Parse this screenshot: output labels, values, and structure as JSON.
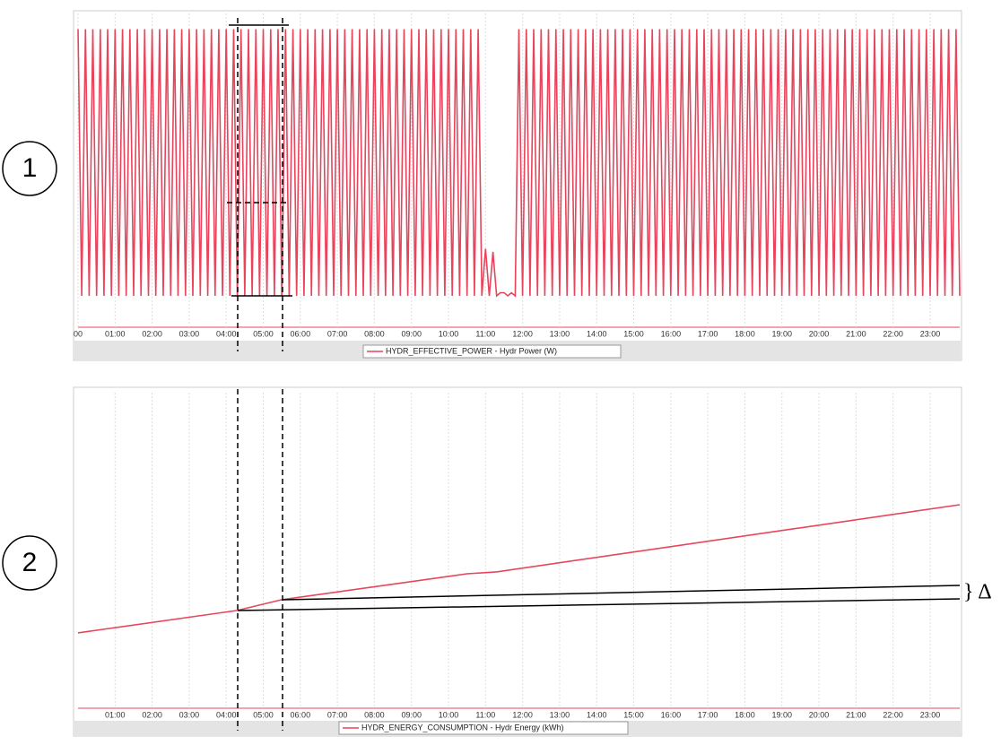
{
  "chart_data": [
    {
      "type": "line",
      "annotations": [
        "1"
      ],
      "xlim": [
        0,
        23.8
      ],
      "ylim": [
        0,
        100
      ],
      "grid": true,
      "xticks": [
        {
          "value": 0,
          "label": "00"
        },
        {
          "value": 1,
          "label": "01:00"
        },
        {
          "value": 2,
          "label": "02:00"
        },
        {
          "value": 3,
          "label": "03:00"
        },
        {
          "value": 4,
          "label": "04:00"
        },
        {
          "value": 5,
          "label": "05:00"
        },
        {
          "value": 6,
          "label": "06:00"
        },
        {
          "value": 7,
          "label": "07:00"
        },
        {
          "value": 8,
          "label": "08:00"
        },
        {
          "value": 9,
          "label": "09:00"
        },
        {
          "value": 10,
          "label": "10:00"
        },
        {
          "value": 11,
          "label": "11:00"
        },
        {
          "value": 12,
          "label": "12:00"
        },
        {
          "value": 13,
          "label": "13:00"
        },
        {
          "value": 14,
          "label": "14:00"
        },
        {
          "value": 15,
          "label": "15:00"
        },
        {
          "value": 16,
          "label": "16:00"
        },
        {
          "value": 17,
          "label": "17:00"
        },
        {
          "value": 18,
          "label": "18:00"
        },
        {
          "value": 19,
          "label": "19:00"
        },
        {
          "value": 20,
          "label": "20:00"
        },
        {
          "value": 21,
          "label": "21:00"
        },
        {
          "value": 22,
          "label": "22:00"
        },
        {
          "value": 23,
          "label": "23:00"
        }
      ],
      "x": [
        0,
        0.1,
        0.2,
        0.3,
        0.4,
        0.5,
        0.6,
        0.7,
        0.8,
        0.9,
        1,
        1.1,
        1.2,
        1.3,
        1.4,
        1.5,
        1.6,
        1.7,
        1.8,
        1.9,
        2,
        2.1,
        2.2,
        2.3,
        2.4,
        2.5,
        2.6,
        2.7,
        2.8,
        2.9,
        3,
        3.1,
        3.2,
        3.3,
        3.4,
        3.5,
        3.6,
        3.7,
        3.8,
        3.9,
        4,
        4.1,
        4.2,
        4.3,
        4.4,
        4.5,
        4.6,
        4.7,
        4.8,
        4.9,
        5,
        5.1,
        5.2,
        5.3,
        5.4,
        5.5,
        5.6,
        5.7,
        5.8,
        5.9,
        6,
        6.1,
        6.2,
        6.3,
        6.4,
        6.5,
        6.6,
        6.7,
        6.8,
        6.9,
        7,
        7.1,
        7.2,
        7.3,
        7.4,
        7.5,
        7.6,
        7.7,
        7.8,
        7.9,
        8,
        8.1,
        8.2,
        8.3,
        8.4,
        8.5,
        8.6,
        8.7,
        8.8,
        8.9,
        9,
        9.1,
        9.2,
        9.3,
        9.4,
        9.5,
        9.6,
        9.7,
        9.8,
        9.9,
        10,
        10.1,
        10.2,
        10.3,
        10.4,
        10.5,
        10.6,
        10.7,
        10.8,
        10.9,
        11,
        11.1,
        11.2,
        11.3,
        11.4,
        11.5,
        11.6,
        11.7,
        11.8,
        11.9,
        12,
        12.1,
        12.2,
        12.3,
        12.4,
        12.5,
        12.6,
        12.7,
        12.8,
        12.9,
        13,
        13.1,
        13.2,
        13.3,
        13.4,
        13.5,
        13.6,
        13.7,
        13.8,
        13.9,
        14,
        14.1,
        14.2,
        14.3,
        14.4,
        14.5,
        14.6,
        14.7,
        14.8,
        14.9,
        15,
        15.1,
        15.2,
        15.3,
        15.4,
        15.5,
        15.6,
        15.7,
        15.8,
        15.9,
        16,
        16.1,
        16.2,
        16.3,
        16.4,
        16.5,
        16.6,
        16.7,
        16.8,
        16.9,
        17,
        17.1,
        17.2,
        17.3,
        17.4,
        17.5,
        17.6,
        17.7,
        17.8,
        17.9,
        18,
        18.1,
        18.2,
        18.3,
        18.4,
        18.5,
        18.6,
        18.7,
        18.8,
        18.9,
        19,
        19.1,
        19.2,
        19.3,
        19.4,
        19.5,
        19.6,
        19.7,
        19.8,
        19.9,
        20,
        20.1,
        20.2,
        20.3,
        20.4,
        20.5,
        20.6,
        20.7,
        20.8,
        20.9,
        21,
        21.1,
        21.2,
        21.3,
        21.4,
        21.5,
        21.6,
        21.7,
        21.8,
        21.9,
        22,
        22.1,
        22.2,
        22.3,
        22.4,
        22.5,
        22.6,
        22.7,
        22.8,
        22.9,
        23,
        23.1,
        23.2,
        23.3,
        23.4,
        23.5,
        23.6,
        23.7,
        23.8
      ],
      "series": [
        {
          "name": "HYDR_EFFECTIVE_POWER - Hydr Power (W)",
          "color": "#e8445c",
          "values": [
            95,
            10,
            95,
            10,
            95,
            10,
            95,
            10,
            95,
            10,
            95,
            10,
            95,
            10,
            95,
            10,
            95,
            10,
            95,
            10,
            95,
            10,
            95,
            10,
            95,
            10,
            95,
            10,
            95,
            10,
            95,
            10,
            95,
            10,
            95,
            10,
            95,
            10,
            95,
            10,
            95,
            10,
            95,
            10,
            95,
            10,
            95,
            10,
            95,
            10,
            95,
            10,
            95,
            10,
            95,
            10,
            95,
            10,
            95,
            10,
            95,
            10,
            95,
            10,
            95,
            10,
            95,
            10,
            95,
            10,
            95,
            10,
            95,
            10,
            95,
            10,
            95,
            10,
            95,
            10,
            95,
            10,
            95,
            10,
            95,
            10,
            95,
            10,
            95,
            10,
            95,
            10,
            95,
            10,
            95,
            10,
            95,
            10,
            95,
            10,
            95,
            10,
            95,
            10,
            95,
            10,
            95,
            10,
            95,
            10,
            25,
            10,
            24,
            10,
            11,
            11,
            10,
            11,
            10,
            95,
            10,
            95,
            10,
            95,
            10,
            95,
            10,
            95,
            10,
            95,
            10,
            95,
            10,
            95,
            10,
            95,
            10,
            95,
            10,
            95,
            10,
            95,
            10,
            95,
            10,
            95,
            10,
            95,
            10,
            95,
            10,
            95,
            10,
            95,
            10,
            95,
            10,
            95,
            10,
            95,
            10,
            95,
            10,
            95,
            10,
            95,
            10,
            95,
            10,
            95,
            10,
            95,
            10,
            95,
            10,
            95,
            10,
            95,
            10,
            95,
            10,
            95,
            10,
            95,
            10,
            95,
            10,
            95,
            10,
            95,
            10,
            95,
            10,
            95,
            10,
            95,
            10,
            95,
            10,
            95,
            10,
            95,
            10,
            95,
            10,
            95,
            10,
            95,
            10,
            95,
            10,
            95,
            10,
            95,
            10,
            95,
            10,
            95,
            10,
            95,
            10,
            95,
            10,
            95,
            10,
            95,
            10,
            95,
            10,
            95,
            10,
            95,
            10,
            95,
            10,
            95,
            10,
            95,
            10
          ]
        }
      ]
    },
    {
      "type": "line",
      "annotations": [
        "2",
        "} Δ"
      ],
      "xlim": [
        0,
        23.8
      ],
      "ylim": [
        0,
        100
      ],
      "grid": true,
      "xticks": [
        {
          "value": 1,
          "label": "01:00"
        },
        {
          "value": 2,
          "label": "02:00"
        },
        {
          "value": 3,
          "label": "03:00"
        },
        {
          "value": 4,
          "label": "04:00"
        },
        {
          "value": 5,
          "label": "05:00"
        },
        {
          "value": 6,
          "label": "06:00"
        },
        {
          "value": 7,
          "label": "07:00"
        },
        {
          "value": 8,
          "label": "08:00"
        },
        {
          "value": 9,
          "label": "09:00"
        },
        {
          "value": 10,
          "label": "10:00"
        },
        {
          "value": 11,
          "label": "11:00"
        },
        {
          "value": 12,
          "label": "12:00"
        },
        {
          "value": 13,
          "label": "13:00"
        },
        {
          "value": 14,
          "label": "14:00"
        },
        {
          "value": 15,
          "label": "15:00"
        },
        {
          "value": 16,
          "label": "16:00"
        },
        {
          "value": 17,
          "label": "17:00"
        },
        {
          "value": 18,
          "label": "18:00"
        },
        {
          "value": 19,
          "label": "19:00"
        },
        {
          "value": 20,
          "label": "20:00"
        },
        {
          "value": 21,
          "label": "21:00"
        },
        {
          "value": 22,
          "label": "22:00"
        },
        {
          "value": 23,
          "label": "23:00"
        }
      ],
      "x": [
        0,
        4.3,
        5.5,
        10.5,
        11.3,
        23.8
      ],
      "series": [
        {
          "name": "HYDR_ENERGY_CONSUMPTION - Hydr Energy (kWh)",
          "color": "#e8445c",
          "values": [
            23.9,
            31,
            34.4,
            42.6,
            43.2,
            64.5
          ]
        }
      ]
    }
  ]
}
